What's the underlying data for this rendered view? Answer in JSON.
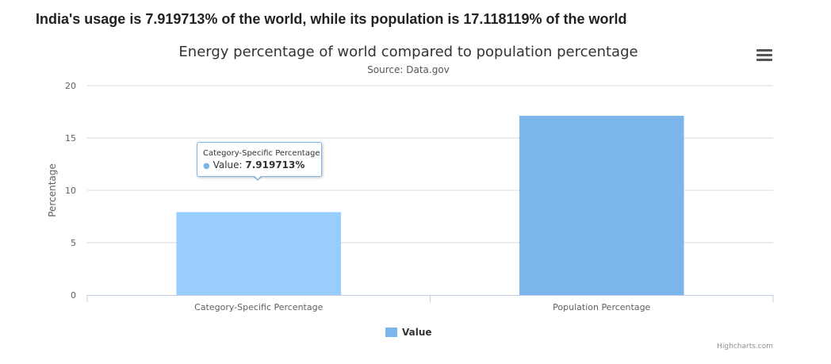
{
  "headline": "India's usage is 7.919713% of the world, while its population is 17.118119% of the world",
  "menu": {
    "icon": "hamburger-menu-icon"
  },
  "credits": "Highcharts.com",
  "tooltip": {
    "header": "Category-Specific Percentage",
    "series_label": "Value: ",
    "value_text": "7.919713%"
  },
  "colors": {
    "bar_highlight": "#99ccff",
    "bar": "#7cb5ec",
    "grid": "#d8d8d8",
    "axis": "#c0d0e0",
    "text": "#333333",
    "tick_text": "#606060"
  },
  "chart_data": {
    "type": "bar",
    "title": "Energy percentage of world compared to population percentage",
    "subtitle": "Source: Data.gov",
    "xlabel": "",
    "ylabel": "Percentage",
    "categories": [
      "Category-Specific Percentage",
      "Population Percentage"
    ],
    "series": [
      {
        "name": "Value",
        "values": [
          7.919713,
          17.118119
        ]
      }
    ],
    "ylim": [
      0,
      20
    ],
    "yticks": [
      0,
      5,
      10,
      15,
      20
    ],
    "grid": true,
    "legend": "bottom-center",
    "highlighted_index": 0
  }
}
